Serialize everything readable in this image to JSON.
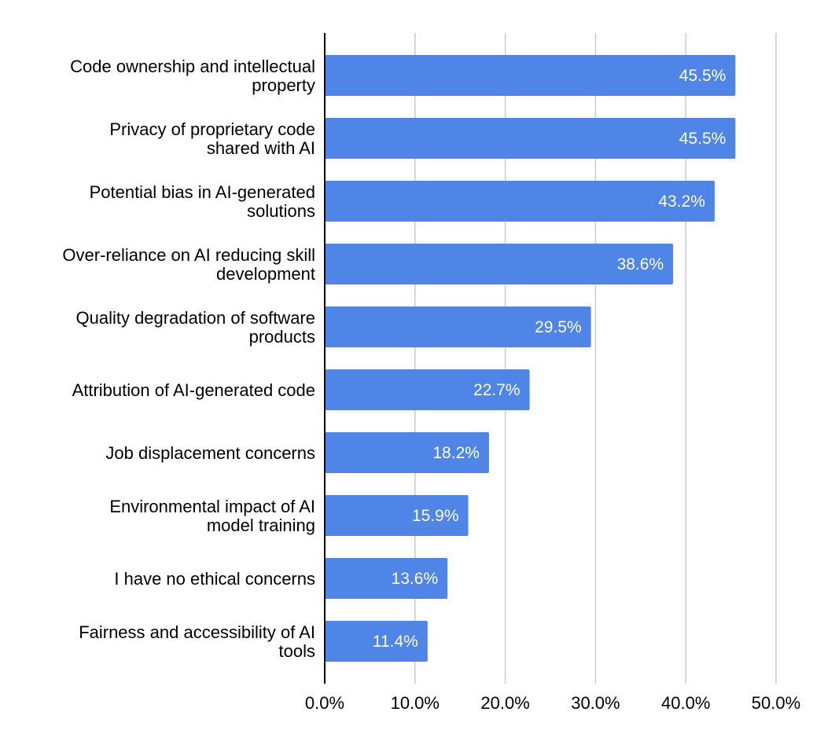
{
  "chart_data": {
    "type": "bar",
    "orientation": "horizontal",
    "title": "",
    "xlabel": "",
    "ylabel": "",
    "xlim": [
      0,
      50
    ],
    "grid": true,
    "legend": "none",
    "bar_color": "#5085E8",
    "grid_color": "#CCCCCC",
    "axis_color": "#000000",
    "label_color": "#FFFFFF",
    "categories": [
      [
        "Code ownership and intellectual",
        "property"
      ],
      [
        "Privacy of proprietary code",
        "shared with AI"
      ],
      [
        "Potential bias in AI-generated",
        "solutions"
      ],
      [
        "Over-reliance on AI reducing skill",
        "development"
      ],
      [
        "Quality degradation of software",
        "products"
      ],
      [
        "Attribution of AI-generated code"
      ],
      [
        "Job displacement concerns"
      ],
      [
        "Environmental impact of AI",
        "model training"
      ],
      [
        "I have no ethical concerns"
      ],
      [
        "Fairness and accessibility of AI",
        "tools"
      ]
    ],
    "values": [
      45.5,
      45.5,
      43.2,
      38.6,
      29.5,
      22.7,
      18.2,
      15.9,
      13.6,
      11.4
    ],
    "data_labels": [
      "45.5%",
      "45.5%",
      "43.2%",
      "38.6%",
      "29.5%",
      "22.7%",
      "18.2%",
      "15.9%",
      "13.6%",
      "11.4%"
    ],
    "x_ticks": [
      0,
      10,
      20,
      30,
      40,
      50
    ],
    "x_tick_labels": [
      "0.0%",
      "10.0%",
      "20.0%",
      "30.0%",
      "40.0%",
      "50.0%"
    ]
  }
}
